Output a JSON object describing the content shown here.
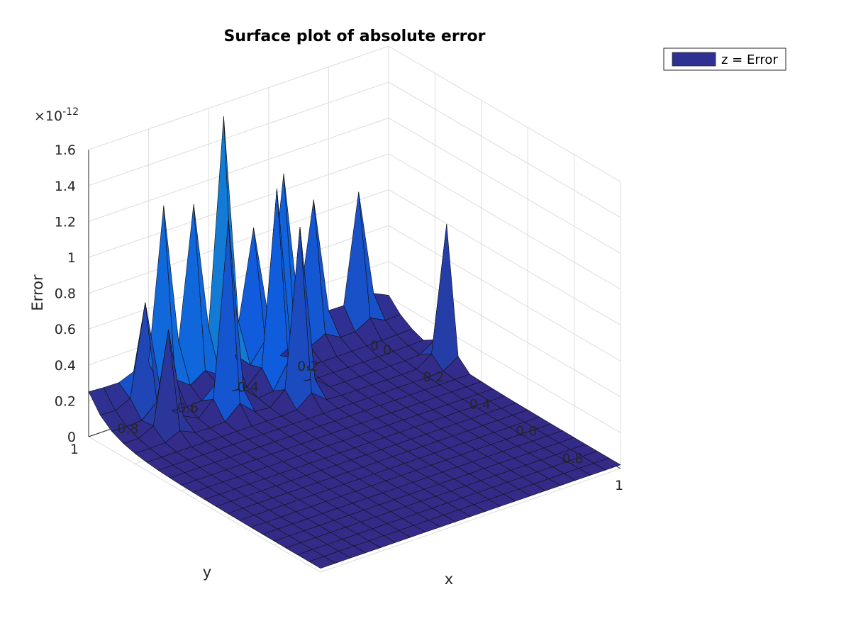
{
  "chart_data": {
    "type": "surface",
    "title": "Surface plot of absolute error",
    "xlabel": "x",
    "ylabel": "y",
    "zlabel": "Error",
    "z_exponent_label": "×10",
    "z_exponent_power": "-12",
    "xlim": [
      0,
      1
    ],
    "ylim": [
      0,
      1
    ],
    "zlim": [
      0,
      1.6
    ],
    "x_ticks": [
      "0",
      "0.2",
      "0.4",
      "0.6",
      "0.8",
      "1"
    ],
    "y_ticks": [
      "0",
      "0.2",
      "0.4",
      "0.6",
      "0.8",
      "1"
    ],
    "z_ticks": [
      "0",
      "0.2",
      "0.4",
      "0.6",
      "0.8",
      "1",
      "1.2",
      "1.4",
      "1.6"
    ],
    "grid": true,
    "legend": {
      "label": "z = Error",
      "placement": "top-right",
      "color": "#2e3192"
    },
    "colormap": "parula",
    "grid_resolution": 21,
    "base_surface": "decaying error, largest near x = 0, y = 1, near zero for large x",
    "peaks": [
      {
        "x": 0.0,
        "y": 0.75,
        "z": 0.92
      },
      {
        "x": 0.0,
        "y": 0.65,
        "z": 0.88
      },
      {
        "x": 0.0,
        "y": 0.55,
        "z": 1.32
      },
      {
        "x": 0.0,
        "y": 0.45,
        "z": 0.65
      },
      {
        "x": 0.0,
        "y": 0.35,
        "z": 0.9
      },
      {
        "x": 0.0,
        "y": 0.25,
        "z": 0.7
      },
      {
        "x": 0.05,
        "y": 0.85,
        "z": 0.55
      },
      {
        "x": 0.1,
        "y": 0.45,
        "z": 1.05
      },
      {
        "x": 0.15,
        "y": 0.65,
        "z": 1.05
      },
      {
        "x": 0.2,
        "y": 0.45,
        "z": 0.95
      },
      {
        "x": 0.15,
        "y": 0.85,
        "z": 0.55
      },
      {
        "x": 0.25,
        "y": 0.0,
        "z": 0.75
      },
      {
        "x": 0.0,
        "y": 0.1,
        "z": 0.65
      }
    ]
  }
}
